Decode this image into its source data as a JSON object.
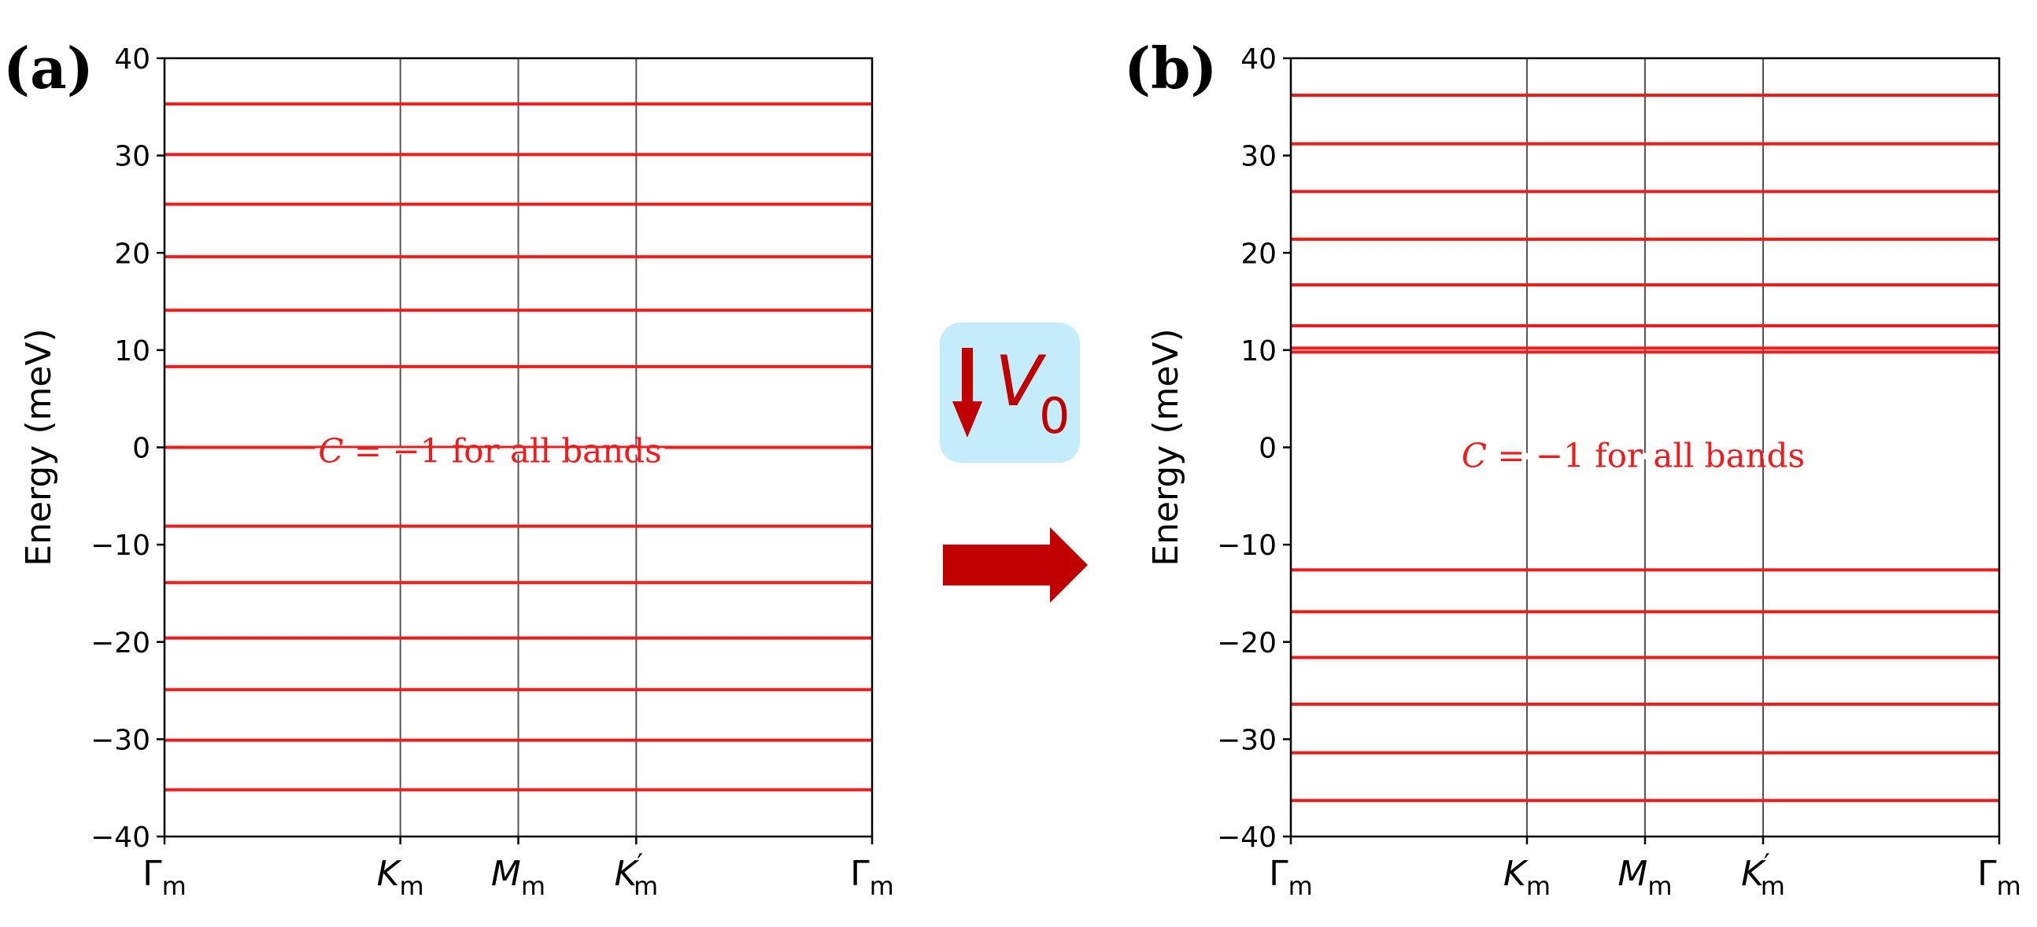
{
  "colors": {
    "band": "#ee1c1c",
    "vline": "#555555",
    "axis": "#000000",
    "arrow": "#c00000",
    "badge_bg": "#c4ecfb",
    "annotation": "#ee1c1c"
  },
  "middle": {
    "badge_symbol": "V",
    "badge_subscript": "0",
    "badge_arrow_icon": "down-arrow-icon",
    "transition_arrow_icon": "right-arrow-icon"
  },
  "chart_data": [
    {
      "type": "line",
      "panel_label": "(a)",
      "ylabel": "Energy (meV)",
      "xlabel": "",
      "ylim": [
        -40,
        40
      ],
      "yticks": [
        40,
        30,
        20,
        10,
        0,
        -10,
        -20,
        -30,
        -40
      ],
      "ytick_labels": [
        "40",
        "30",
        "20",
        "10",
        "0",
        "−10",
        "−20",
        "−30",
        "−40"
      ],
      "xticks": [
        0,
        1,
        1.5,
        2,
        3
      ],
      "xtick_labels": [
        {
          "main": "Γ",
          "sub": "m",
          "prime": ""
        },
        {
          "main": "K",
          "sub": "m",
          "prime": ""
        },
        {
          "main": "M",
          "sub": "m",
          "prime": ""
        },
        {
          "main": "K",
          "sub": "m",
          "prime": "′"
        },
        {
          "main": "Γ",
          "sub": "m",
          "prime": ""
        }
      ],
      "vlines": [
        1,
        1.5,
        2
      ],
      "bands": [
        35.3,
        30.1,
        25.0,
        19.6,
        14.1,
        8.3,
        0.0,
        -8.1,
        -13.9,
        -19.6,
        -24.9,
        -30.1,
        -35.2
      ],
      "annotation": {
        "symbol": "C",
        "text": " = −1 for all bands",
        "x": 1.38,
        "y": -0.4
      }
    },
    {
      "type": "line",
      "panel_label": "(b)",
      "ylabel": "Energy (meV)",
      "xlabel": "",
      "ylim": [
        -40,
        40
      ],
      "yticks": [
        40,
        30,
        20,
        10,
        0,
        -10,
        -20,
        -30,
        -40
      ],
      "ytick_labels": [
        "40",
        "30",
        "20",
        "10",
        "0",
        "−10",
        "−20",
        "−30",
        "−40"
      ],
      "xticks": [
        0,
        1,
        1.5,
        2,
        3
      ],
      "xtick_labels": [
        {
          "main": "Γ",
          "sub": "m",
          "prime": ""
        },
        {
          "main": "K",
          "sub": "m",
          "prime": ""
        },
        {
          "main": "M",
          "sub": "m",
          "prime": ""
        },
        {
          "main": "K",
          "sub": "m",
          "prime": "′"
        },
        {
          "main": "Γ",
          "sub": "m",
          "prime": ""
        }
      ],
      "vlines": [
        1,
        1.5,
        2
      ],
      "bands": [
        36.2,
        31.2,
        26.3,
        21.4,
        16.7,
        12.5,
        10.2,
        9.8,
        -12.6,
        -16.9,
        -21.6,
        -26.4,
        -31.4,
        -36.3
      ],
      "annotation": {
        "symbol": "C",
        "text": " = −1 for all bands",
        "x": 1.45,
        "y": -0.9
      }
    }
  ]
}
